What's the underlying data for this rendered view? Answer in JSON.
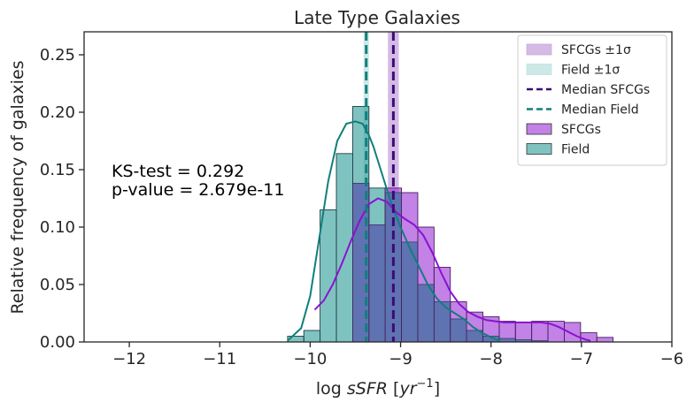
{
  "chart_data": {
    "type": "bar",
    "title": "Late Type Galaxies",
    "xlabel": "log sSFR [yr",
    "xlabel_italic": "sSFR",
    "xlabel_unit": "yr",
    "xlabel_sup": "−1",
    "ylabel": "Relative frequency of galaxies",
    "xlim": [
      -12.5,
      -6
    ],
    "ylim": [
      0,
      0.27
    ],
    "xticks": [
      -12,
      -11,
      -10,
      -9,
      -8,
      -7,
      -6
    ],
    "xtick_labels": [
      "−12",
      "−11",
      "−10",
      "−9",
      "−8",
      "−7",
      "−6"
    ],
    "yticks": [
      0,
      0.05,
      0.1,
      0.15,
      0.2,
      0.25
    ],
    "ytick_labels": [
      "0.00",
      "0.05",
      "0.10",
      "0.15",
      "0.20",
      "0.25"
    ],
    "grid": false,
    "legend_position": "top-right",
    "annotations": [
      "KS-test = 0.292",
      "p-value = 2.679e-11"
    ],
    "colors": {
      "sfcg_fill": "#9a2fd6",
      "field_fill": "#2a9b97",
      "overlap_fill": "#5d73b0",
      "sfcg_line": "#8b12d2",
      "field_line": "#0f7f7c",
      "median_sfcg": "#3d0a75",
      "median_field": "#0f7f7c",
      "band_sfcg": "#c9a9dd",
      "band_field": "#bfe3e2"
    },
    "field_hist": {
      "name": "Field",
      "bin_start": -10.25,
      "bin_width": 0.18,
      "values": [
        0.005,
        0.01,
        0.115,
        0.164,
        0.205,
        0.134,
        0.13,
        0.087,
        0.05,
        0.035,
        0.02,
        0.01,
        0.005,
        0.003,
        0.002,
        0.001
      ]
    },
    "sfcg_hist": {
      "name": "SFCGs",
      "bin_start": -9.89,
      "bin_width": 0.18,
      "values": [
        0.0,
        0.0,
        0.138,
        0.102,
        0.134,
        0.13,
        0.1,
        0.065,
        0.035,
        0.026,
        0.022,
        0.018,
        0.017,
        0.018,
        0.018,
        0.017,
        0.008,
        0.004
      ]
    },
    "field_kde": {
      "x": [
        -10.25,
        -10.1,
        -10.0,
        -9.9,
        -9.8,
        -9.7,
        -9.6,
        -9.5,
        -9.42,
        -9.35,
        -9.3,
        -9.2,
        -9.1,
        -9.0,
        -8.9,
        -8.8,
        -8.7,
        -8.6,
        -8.5,
        -8.4,
        -8.3,
        -8.2,
        -8.1,
        -8.0,
        -7.9
      ],
      "y": [
        0.001,
        0.012,
        0.04,
        0.09,
        0.14,
        0.175,
        0.19,
        0.192,
        0.19,
        0.18,
        0.17,
        0.145,
        0.12,
        0.1,
        0.082,
        0.066,
        0.05,
        0.038,
        0.03,
        0.025,
        0.02,
        0.013,
        0.008,
        0.004,
        0.001
      ]
    },
    "sfcg_kde": {
      "x": [
        -9.95,
        -9.85,
        -9.75,
        -9.65,
        -9.55,
        -9.45,
        -9.35,
        -9.25,
        -9.15,
        -9.05,
        -8.95,
        -8.85,
        -8.75,
        -8.65,
        -8.55,
        -8.45,
        -8.35,
        -8.25,
        -8.15,
        -8.05,
        -7.95,
        -7.85,
        -7.75,
        -7.65,
        -7.55,
        -7.45,
        -7.35,
        -7.25,
        -7.15,
        -7.05,
        -6.95,
        -6.9
      ],
      "y": [
        0.028,
        0.036,
        0.05,
        0.068,
        0.088,
        0.106,
        0.12,
        0.125,
        0.122,
        0.113,
        0.107,
        0.102,
        0.093,
        0.078,
        0.06,
        0.044,
        0.033,
        0.026,
        0.022,
        0.019,
        0.018,
        0.017,
        0.017,
        0.017,
        0.017,
        0.017,
        0.016,
        0.013,
        0.009,
        0.005,
        0.002,
        0.001
      ]
    },
    "median_sfcg": -9.08,
    "median_field": -9.38,
    "band_sfcg": [
      -9.14,
      -9.02
    ],
    "band_field": [
      -9.41,
      -9.35
    ],
    "legend": [
      {
        "label": "SFCGs ±1σ",
        "kind": "band",
        "color": "#c9a9dd"
      },
      {
        "label": "Field ±1σ",
        "kind": "band",
        "color": "#bfe3e2"
      },
      {
        "label": "Median SFCGs",
        "kind": "dash",
        "color": "#3d0a75"
      },
      {
        "label": "Median Field",
        "kind": "dash",
        "color": "#0f7f7c"
      },
      {
        "label": "SFCGs",
        "kind": "patch",
        "color": "#9a2fd6"
      },
      {
        "label": "Field",
        "kind": "patch",
        "color": "#2a9b97"
      }
    ]
  }
}
